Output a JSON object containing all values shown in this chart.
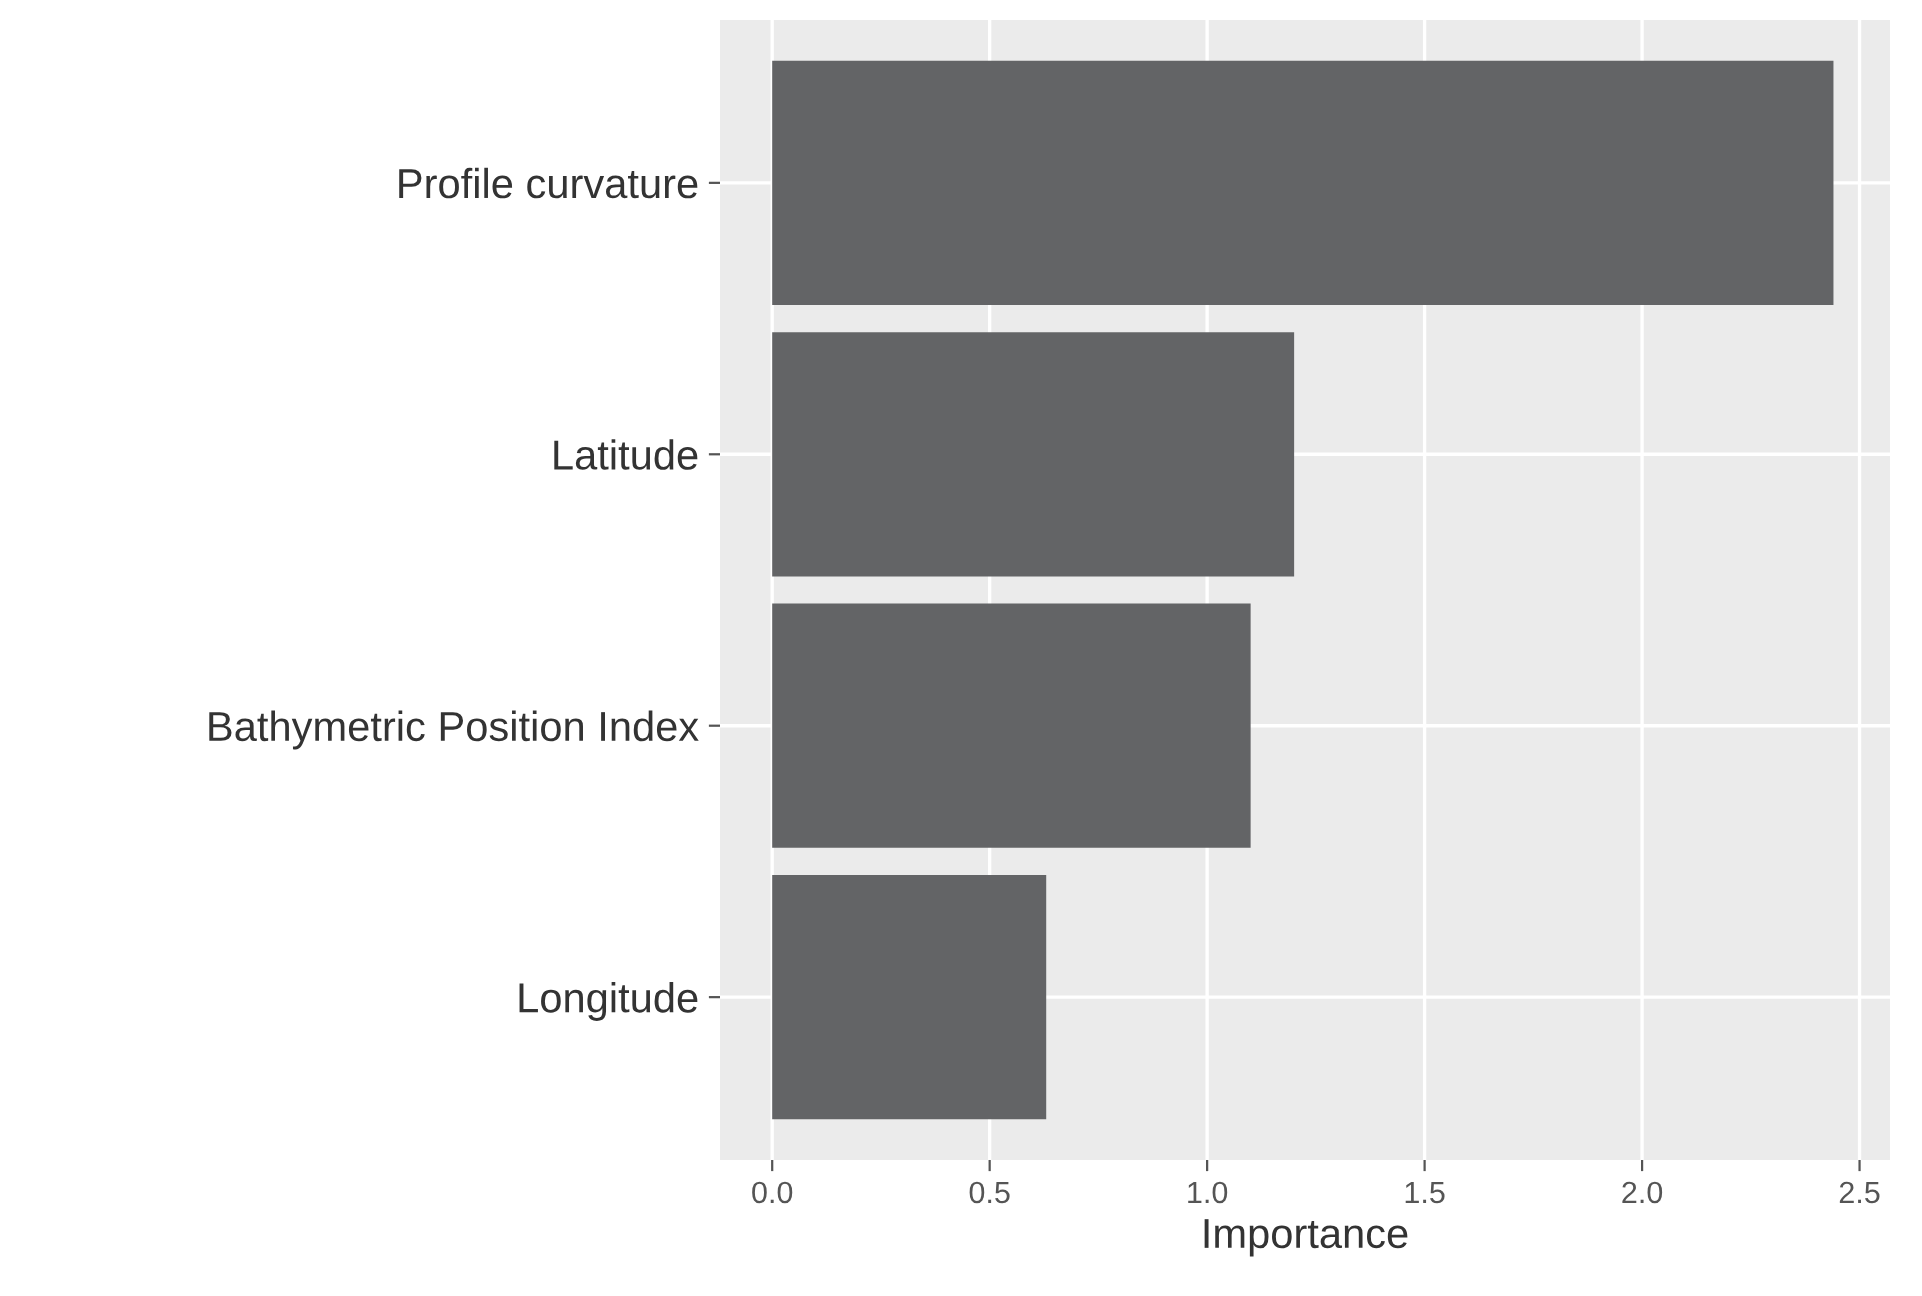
{
  "chart_data": {
    "type": "bar",
    "orientation": "horizontal",
    "xlabel": "Importance",
    "categories": [
      "Profile curvature",
      "Latitude",
      "Bathymetric Position Index",
      "Longitude"
    ],
    "values": [
      2.44,
      1.2,
      1.1,
      0.63
    ],
    "color": "#636466",
    "xlim": [
      -0.12,
      2.57
    ],
    "xticks": [
      {
        "value": 0,
        "label": "0.0"
      },
      {
        "value": 0.5,
        "label": "0.5"
      },
      {
        "value": 1,
        "label": "1.0"
      },
      {
        "value": 1.5,
        "label": "1.5"
      },
      {
        "value": 2,
        "label": "2.0"
      },
      {
        "value": 2.5,
        "label": "2.5"
      }
    ],
    "grid": true
  }
}
